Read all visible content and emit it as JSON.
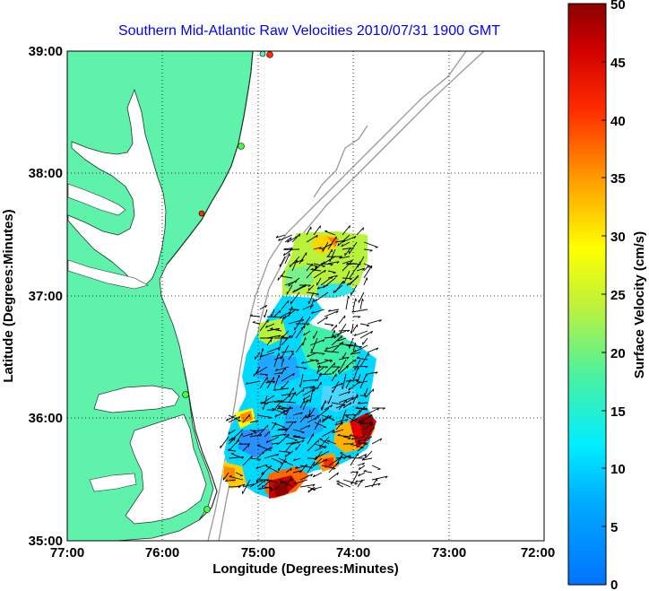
{
  "title": "Southern Mid-Atlantic Raw Velocities 2010/07/31 1900 GMT",
  "x_axis": {
    "label": "Longitude (Degrees:Minutes)",
    "ticks": [
      "77:00",
      "76:00",
      "75:00",
      "74:00",
      "73:00",
      "72:00"
    ]
  },
  "y_axis": {
    "label": "Latitude (Degrees:Minutes)",
    "ticks": [
      "39:00",
      "38:00",
      "37:00",
      "36:00",
      "35:00"
    ]
  },
  "colorbar": {
    "label": "Surface Velocity (cm/s)",
    "ticks": [
      "50",
      "45",
      "40",
      "35",
      "30",
      "25",
      "20",
      "15",
      "10",
      "5",
      "0"
    ],
    "colors": [
      "#0073ff",
      "#00d9ff",
      "#3df2a8",
      "#b8f23a",
      "#ffff00",
      "#ffa800",
      "#ff4000",
      "#e60000",
      "#990000"
    ]
  },
  "map": {
    "land_color": "#5ef2ab",
    "water_color": "#ffffff",
    "grid": "dotted",
    "lon_range_west": [
      77,
      72
    ],
    "lat_range_north": [
      35,
      39
    ]
  }
}
